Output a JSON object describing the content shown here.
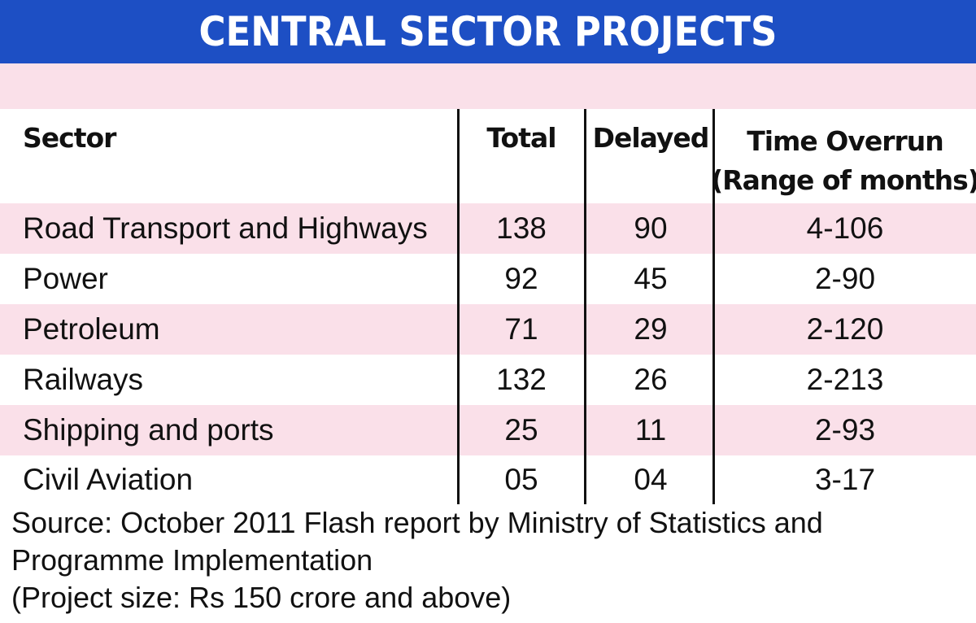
{
  "chart_data": {
    "type": "table",
    "title": "CENTRAL SECTOR PROJECTS",
    "columns": [
      "Sector",
      "Total",
      "Delayed",
      "Time Overrun",
      "(Range of months)"
    ],
    "rows": [
      {
        "sector": "Road Transport and Highways",
        "total": "138",
        "delayed": "90",
        "overrun": "4-106"
      },
      {
        "sector": "Power",
        "total": "92",
        "delayed": "45",
        "overrun": "2-90"
      },
      {
        "sector": "Petroleum",
        "total": "71",
        "delayed": "29",
        "overrun": "2-120"
      },
      {
        "sector": "Railways",
        "total": "132",
        "delayed": "26",
        "overrun": "2-213"
      },
      {
        "sector": "Shipping and ports",
        "total": "25",
        "delayed": "11",
        "overrun": "2-93"
      },
      {
        "sector": "Civil Aviation",
        "total": "05",
        "delayed": "04",
        "overrun": "3-17"
      }
    ],
    "source": [
      "Source: October 2011 Flash report by Ministry of Statistics and",
      "Programme Implementation",
      "(Project size: Rs 150 crore and above)"
    ]
  },
  "colors": {
    "banner": "#1d4fc4",
    "row_pink": "#fae0e9",
    "row_white": "#ffffff",
    "text": "#111111"
  }
}
